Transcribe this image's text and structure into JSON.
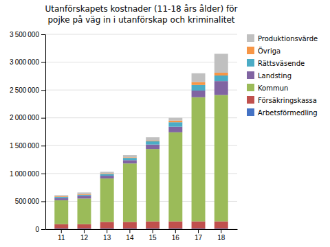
{
  "chart_data": {
    "type": "bar",
    "stacked": true,
    "title": "Utanförskapets kostnader (11-18 års ålder) för",
    "subtitle": "pojke på väg in i utanförskap och kriminalitet",
    "categories": [
      "11",
      "12",
      "13",
      "14",
      "15",
      "16",
      "17",
      "18"
    ],
    "series": [
      {
        "name": "Arbetsförmedling",
        "color": "#4472C4",
        "values": [
          10000,
          10000,
          10000,
          10000,
          10000,
          10000,
          10000,
          10000
        ]
      },
      {
        "name": "Försäkringskassa",
        "color": "#C0504D",
        "values": [
          80000,
          80000,
          120000,
          120000,
          130000,
          130000,
          130000,
          130000
        ]
      },
      {
        "name": "Kommun",
        "color": "#9BBB59",
        "values": [
          430000,
          460000,
          780000,
          1050000,
          1300000,
          1600000,
          2230000,
          2270000
        ]
      },
      {
        "name": "Landsting",
        "color": "#8064A2",
        "values": [
          40000,
          50000,
          50000,
          60000,
          80000,
          100000,
          120000,
          250000
        ]
      },
      {
        "name": "Rättsväsende",
        "color": "#4BACC6",
        "values": [
          20000,
          20000,
          30000,
          40000,
          60000,
          80000,
          100000,
          100000
        ]
      },
      {
        "name": "Övriga",
        "color": "#F79646",
        "values": [
          10000,
          10000,
          10000,
          10000,
          10000,
          30000,
          50000,
          50000
        ]
      },
      {
        "name": "Produktionsvärde",
        "color": "#C0C0C0",
        "values": [
          20000,
          30000,
          30000,
          40000,
          60000,
          50000,
          160000,
          340000
        ]
      }
    ],
    "ylim": [
      0,
      3500000
    ],
    "yticks": [
      0,
      {
        "value": 500000,
        "label": "500 000"
      },
      {
        "value": 1000000,
        "label": "1 000 000"
      },
      {
        "value": 1500000,
        "label": "1 500 000"
      },
      {
        "value": 2000000,
        "label": "2 000 000"
      },
      {
        "value": 2500000,
        "label": "2 500 000"
      },
      {
        "value": 3000000,
        "label": "3 000 000"
      },
      {
        "value": 3500000,
        "label": "3 500 000"
      }
    ],
    "grid": true,
    "legend": "right"
  }
}
